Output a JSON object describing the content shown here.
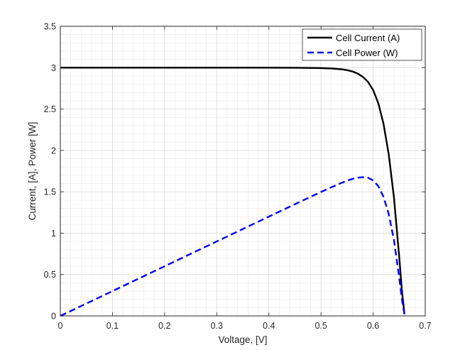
{
  "chart_data": {
    "type": "line",
    "title": "",
    "xlabel": "Voltage, [V]",
    "ylabel": "Current, [A], Power [W]",
    "xlim": [
      0,
      0.7
    ],
    "ylim": [
      0,
      3.5
    ],
    "xticks": [
      0,
      0.1,
      0.2,
      0.3,
      0.4,
      0.5,
      0.6,
      0.7
    ],
    "xtick_labels": [
      "0",
      "0.1",
      "0.2",
      "0.3",
      "0.4",
      "0.5",
      "0.6",
      "0.7"
    ],
    "yticks": [
      0,
      0.5,
      1,
      1.5,
      2,
      2.5,
      3,
      3.5
    ],
    "ytick_labels": [
      "0",
      "0.5",
      "1",
      "1.5",
      "2",
      "2.5",
      "3",
      "3.5"
    ],
    "grid": true,
    "minor_grid": true,
    "legend_position": "top-right",
    "series": [
      {
        "name": "Cell Current (A)",
        "color": "#000000",
        "dash": "solid",
        "x": [
          0,
          0.1,
          0.2,
          0.3,
          0.4,
          0.45,
          0.5,
          0.52,
          0.54,
          0.55,
          0.56,
          0.57,
          0.58,
          0.59,
          0.6,
          0.61,
          0.62,
          0.63,
          0.64,
          0.65,
          0.655,
          0.66
        ],
        "y": [
          3.0,
          3.0,
          3.0,
          3.0,
          3.0,
          2.999,
          2.995,
          2.99,
          2.98,
          2.97,
          2.955,
          2.93,
          2.89,
          2.83,
          2.73,
          2.57,
          2.32,
          1.95,
          1.43,
          0.72,
          0.32,
          0.03
        ]
      },
      {
        "name": "Cell Power (W)",
        "color": "#0000ff",
        "dash": "dashed",
        "x": [
          0,
          0.1,
          0.2,
          0.3,
          0.4,
          0.45,
          0.5,
          0.52,
          0.54,
          0.55,
          0.56,
          0.57,
          0.58,
          0.59,
          0.6,
          0.61,
          0.62,
          0.63,
          0.64,
          0.65,
          0.655,
          0.66
        ],
        "y": [
          0,
          0.3,
          0.6,
          0.9,
          1.2,
          1.35,
          1.498,
          1.555,
          1.609,
          1.634,
          1.655,
          1.67,
          1.676,
          1.67,
          1.638,
          1.568,
          1.438,
          1.229,
          0.915,
          0.468,
          0.21,
          0.02
        ]
      }
    ]
  }
}
